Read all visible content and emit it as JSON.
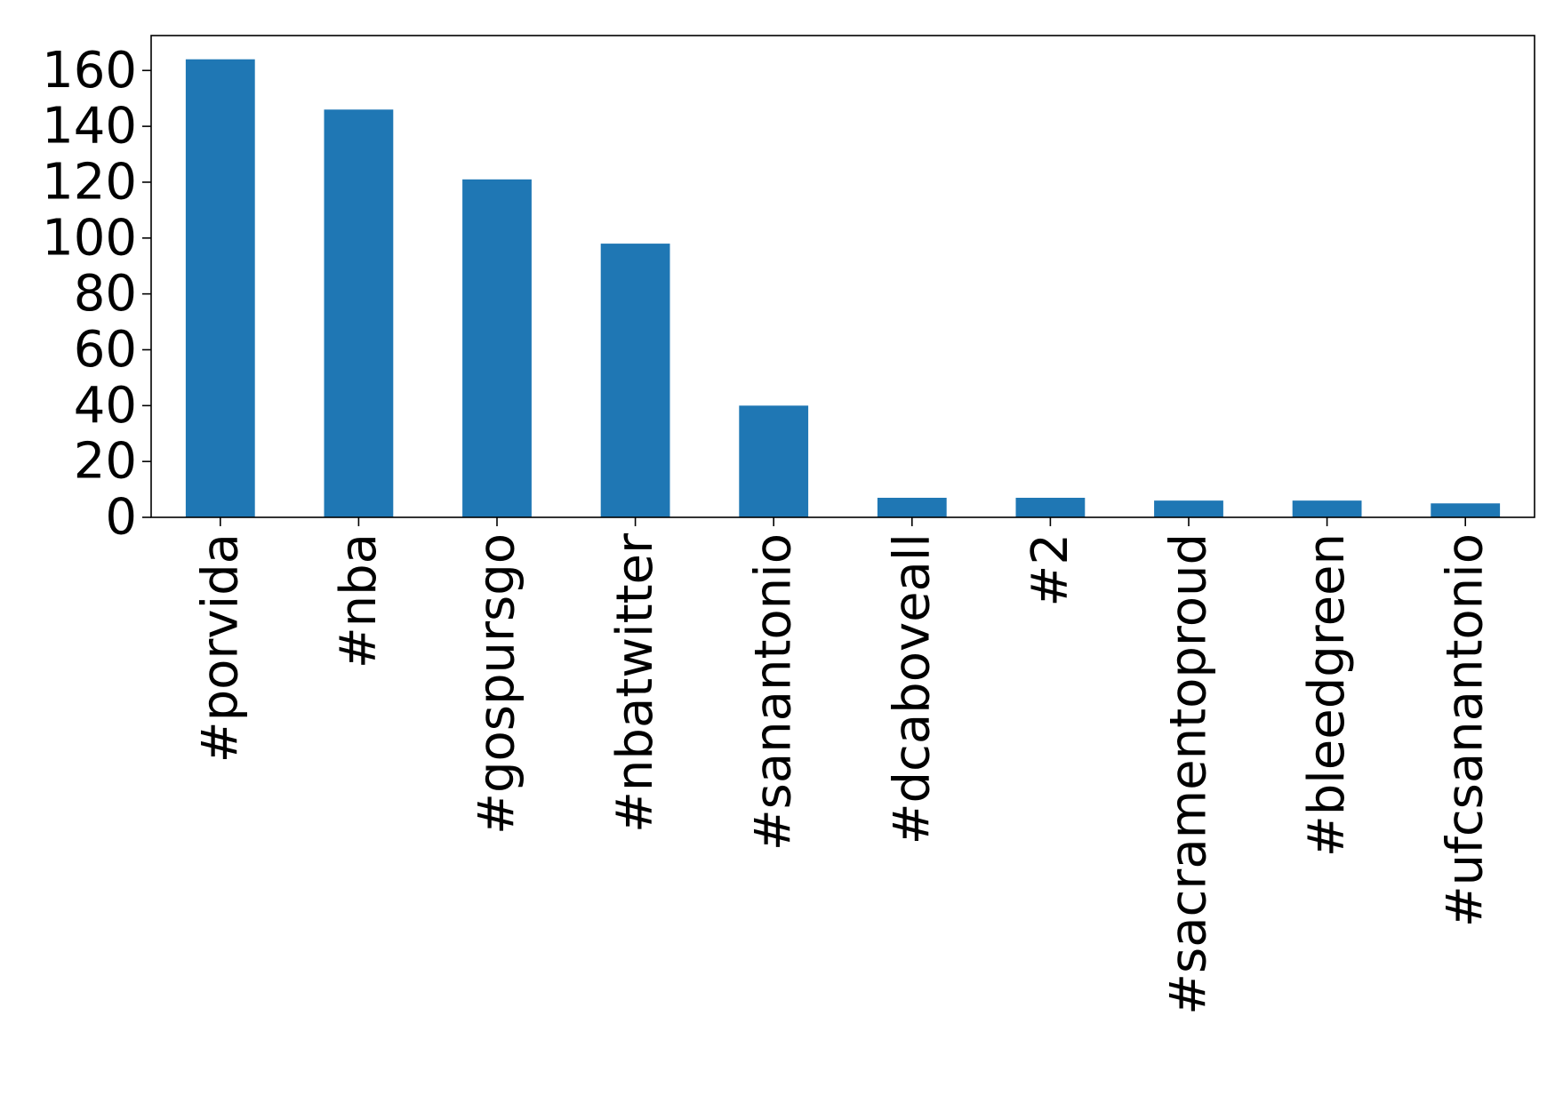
{
  "chart_data": {
    "type": "bar",
    "title": "",
    "xlabel": "",
    "ylabel": "",
    "categories": [
      "#porvida",
      "#nba",
      "#gospursgo",
      "#nbatwitter",
      "#sanantonio",
      "#dcaboveall",
      "#2",
      "#sacramentoproud",
      "#bleedgreen",
      "#ufcsanantonio"
    ],
    "values": [
      164,
      146,
      121,
      98,
      40,
      7,
      7,
      6,
      6,
      5
    ],
    "ylim": [
      0,
      172.5
    ],
    "yticks": [
      0,
      20,
      40,
      60,
      80,
      100,
      120,
      140,
      160
    ],
    "bar_color": "#1f77b4",
    "grid": false,
    "legend": "none"
  }
}
